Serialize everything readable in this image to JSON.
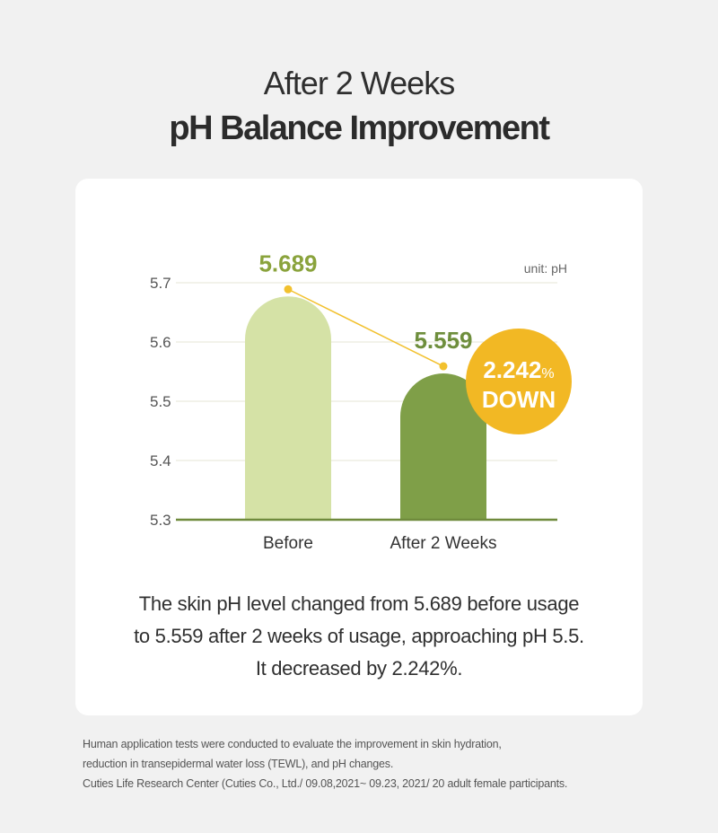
{
  "header": {
    "title_line1": "After 2 Weeks",
    "title_line2": "pH Balance Improvement"
  },
  "chart_data": {
    "type": "bar",
    "categories": [
      "Before",
      "After 2 Weeks"
    ],
    "values": [
      5.689,
      5.559
    ],
    "value_labels": [
      "5.689",
      "5.559"
    ],
    "bar_colors": [
      "#d5e2a6",
      "#7f9f48"
    ],
    "label_colors": [
      "#8aa33c",
      "#6e8e3c"
    ],
    "unit_label": "unit: pH",
    "yticks": [
      "5.7",
      "5.6",
      "5.5",
      "5.4",
      "5.3"
    ],
    "ylim": [
      5.3,
      5.7
    ],
    "connector_color": "#f2c12e",
    "badge": {
      "value": "2.242",
      "unit": "%",
      "text": "DOWN",
      "color": "#f2b824"
    }
  },
  "description": {
    "lines": [
      "The skin pH level changed from 5.689 before usage",
      "to 5.559 after 2 weeks of usage, approaching pH 5.5.",
      "It decreased by 2.242%."
    ]
  },
  "footnote": {
    "lines": [
      "Human application tests were conducted to evaluate the improvement in skin hydration,",
      "reduction in transepidermal water loss (TEWL), and pH changes.",
      "Cuties Life Research Center (Cuties Co., Ltd./ 09.08,2021~ 09.23, 2021/ 20 adult female participants."
    ]
  }
}
